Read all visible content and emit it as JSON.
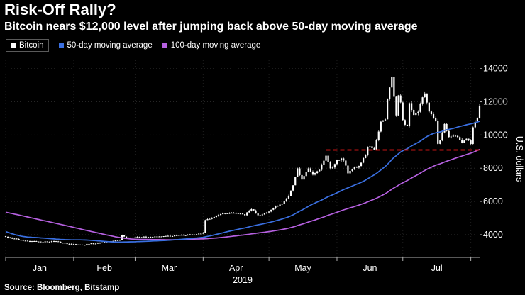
{
  "header": {
    "title": "Risk-Off Rally?",
    "subtitle": "Bitcoin nears $12,000 level after jumping back above 50-day moving average"
  },
  "legend": [
    {
      "label": "Bitcoin",
      "color": "#ffffff",
      "boxed": true
    },
    {
      "label": "50-day moving average",
      "color": "#3a6fe0",
      "boxed": false
    },
    {
      "label": "100-day moving average",
      "color": "#b660e0",
      "boxed": false
    }
  ],
  "source": "Source: Bloomberg, Bitstamp",
  "chart_data": {
    "type": "candlestick",
    "title": "Risk-Off Rally?",
    "subtitle": "Bitcoin nears $12,000 level after jumping back above 50-day moving average",
    "xlabel": "2019",
    "ylabel": "U.S. dollars",
    "y_ticks": [
      4000,
      6000,
      8000,
      10000,
      12000,
      14000
    ],
    "y_domain": [
      2630,
      14500
    ],
    "x_month_labels": [
      "Jan",
      "Feb",
      "Mar",
      "Apr",
      "May",
      "Jun",
      "Jul"
    ],
    "month_start_days": [
      100,
      131,
      159,
      190,
      220,
      251,
      281,
      312
    ],
    "display_range": [
      100,
      316
    ],
    "grid": "dotted",
    "legend_position": "top-left",
    "resistance_line": {
      "value": 9100,
      "start_day": 246,
      "color": "#ff1a1a",
      "style": "dashed"
    },
    "series": [
      {
        "name": "Bitcoin",
        "type": "candlestick",
        "color": "#ffffff",
        "note": "daily closes interpolated from anchors [day_index,price_usd]; days 0-99 are pre-2019 warmup for moving averages, day 100 = Jan 1 2019, day 316 = chart end near 11800",
        "anchors": [
          [
            0,
            6600
          ],
          [
            50,
            6450
          ],
          [
            55,
            5500
          ],
          [
            62,
            3950
          ],
          [
            72,
            4150
          ],
          [
            83,
            3350
          ],
          [
            90,
            3950
          ],
          [
            95,
            4150
          ],
          [
            100,
            3850
          ],
          [
            109,
            3630
          ],
          [
            116,
            3560
          ],
          [
            122,
            3600
          ],
          [
            127,
            3480
          ],
          [
            131,
            3420
          ],
          [
            136,
            3400
          ],
          [
            142,
            3500
          ],
          [
            148,
            3620
          ],
          [
            152,
            3680
          ],
          [
            153,
            3950
          ],
          [
            155,
            3810
          ],
          [
            159,
            3850
          ],
          [
            166,
            3880
          ],
          [
            173,
            3900
          ],
          [
            180,
            3960
          ],
          [
            188,
            4030
          ],
          [
            190,
            4100
          ],
          [
            191,
            4850
          ],
          [
            194,
            5050
          ],
          [
            199,
            5250
          ],
          [
            205,
            5300
          ],
          [
            209,
            5180
          ],
          [
            212,
            5550
          ],
          [
            215,
            5180
          ],
          [
            220,
            5350
          ],
          [
            223,
            5700
          ],
          [
            226,
            5900
          ],
          [
            229,
            6350
          ],
          [
            231,
            6950
          ],
          [
            233,
            7950
          ],
          [
            235,
            7300
          ],
          [
            238,
            7990
          ],
          [
            240,
            7620
          ],
          [
            243,
            7950
          ],
          [
            246,
            8750
          ],
          [
            248,
            7980
          ],
          [
            249,
            8050
          ],
          [
            251,
            8550
          ],
          [
            254,
            8520
          ],
          [
            256,
            7700
          ],
          [
            258,
            7980
          ],
          [
            261,
            8150
          ],
          [
            264,
            8800
          ],
          [
            265,
            9320
          ],
          [
            268,
            9100
          ],
          [
            271,
            10750
          ],
          [
            273,
            11000
          ],
          [
            274,
            12250
          ],
          [
            275,
            12950
          ],
          [
            276,
            13580
          ],
          [
            277,
            12350
          ],
          [
            278,
            11150
          ],
          [
            279,
            12350
          ],
          [
            280,
            11950
          ],
          [
            281,
            10820
          ],
          [
            283,
            10580
          ],
          [
            284,
            11950
          ],
          [
            286,
            11150
          ],
          [
            288,
            11450
          ],
          [
            291,
            12550
          ],
          [
            293,
            11350
          ],
          [
            295,
            11000
          ],
          [
            296,
            10850
          ],
          [
            297,
            9420
          ],
          [
            298,
            9700
          ],
          [
            300,
            10620
          ],
          [
            302,
            9850
          ],
          [
            304,
            9950
          ],
          [
            306,
            9800
          ],
          [
            308,
            9550
          ],
          [
            310,
            9750
          ],
          [
            312,
            9480
          ],
          [
            313,
            10400
          ],
          [
            314,
            10820
          ],
          [
            315,
            10950
          ],
          [
            316,
            11780
          ]
        ]
      },
      {
        "name": "50-day moving average",
        "type": "sma",
        "window": 50,
        "color": "#3a6fe0"
      },
      {
        "name": "100-day moving average",
        "type": "sma",
        "window": 100,
        "color": "#b660e0"
      }
    ]
  }
}
